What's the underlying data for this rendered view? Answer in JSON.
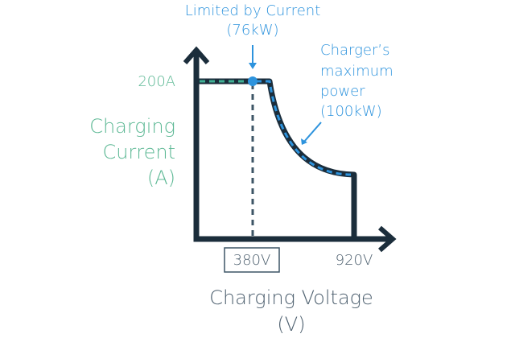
{
  "annotation_top": {
    "line1": "Limited by Current",
    "line2": "(76kW)"
  },
  "annotation_right": {
    "line1": "Charger’s",
    "line2": "maximum",
    "line3": "power",
    "line4": "(100kW)"
  },
  "y_axis": {
    "tick": "200A",
    "label_line1": "Charging",
    "label_line2": "Current",
    "label_line3": "(A)"
  },
  "x_axis": {
    "tick_boxed": "380V",
    "tick_end": "920V",
    "label_line1": "Charging Voltage",
    "label_line2": "(V)"
  }
}
